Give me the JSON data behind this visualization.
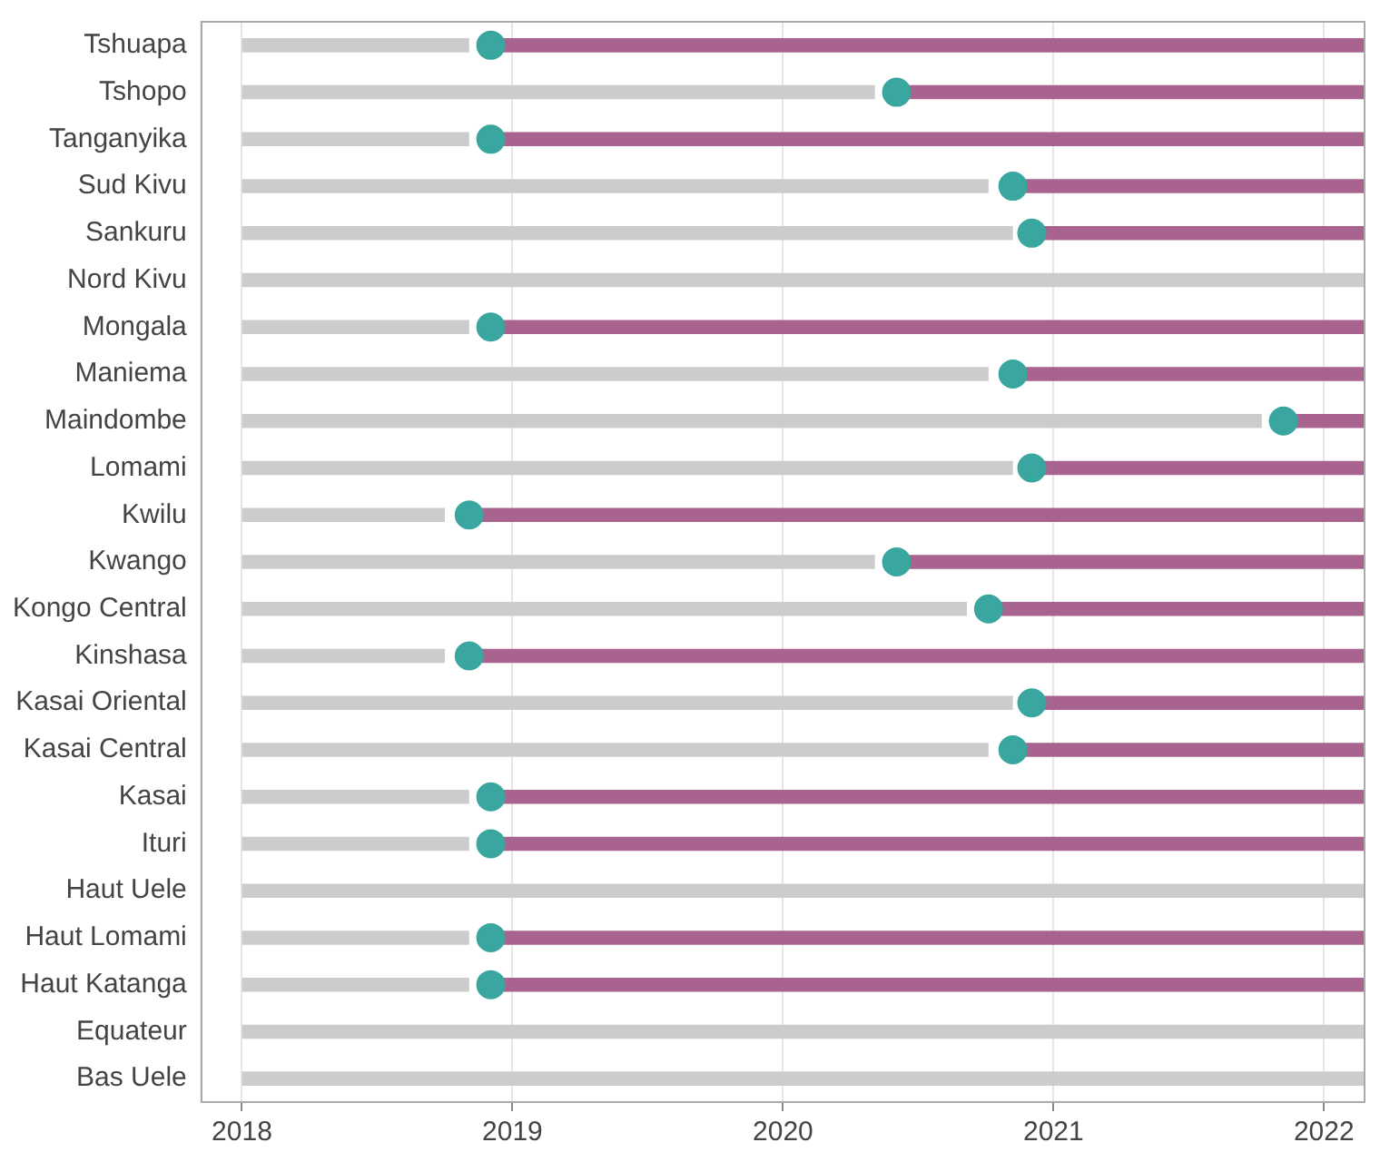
{
  "chart_data": {
    "type": "bar",
    "orientation": "horizontal",
    "categories": [
      "Tshuapa",
      "Tshopo",
      "Tanganyika",
      "Sud Kivu",
      "Sankuru",
      "Nord Kivu",
      "Mongala",
      "Maniema",
      "Maindombe",
      "Lomami",
      "Kwilu",
      "Kwango",
      "Kongo Central",
      "Kinshasa",
      "Kasai Oriental",
      "Kasai Central",
      "Kasai",
      "Ituri",
      "Haut Uele",
      "Haut Lomami",
      "Haut Katanga",
      "Equateur",
      "Bas Uele"
    ],
    "series": [
      {
        "color": "#cccccc",
        "base": [
          2018,
          2018,
          2018,
          2018,
          2018,
          2018,
          2018,
          2018,
          2018,
          2018,
          2018,
          2018,
          2018,
          2018,
          2018,
          2018,
          2018,
          2018,
          2018,
          2018,
          2018,
          2018,
          2018
        ],
        "values": [
          0.84,
          2.34,
          0.84,
          2.76,
          2.85,
          4.15,
          0.84,
          2.76,
          3.77,
          2.85,
          0.75,
          2.34,
          2.68,
          0.75,
          2.85,
          2.76,
          0.84,
          0.84,
          4.15,
          0.84,
          0.84,
          4.15,
          4.15
        ]
      },
      {
        "color": "#a8648f",
        "base": [
          2018.92,
          2020.42,
          2018.92,
          2020.85,
          2020.92,
          null,
          2018.92,
          2020.85,
          2021.85,
          2020.92,
          2018.84,
          2020.42,
          2020.76,
          2018.84,
          2020.92,
          2020.85,
          2018.92,
          2018.92,
          null,
          2018.92,
          2018.92,
          null,
          null
        ],
        "values": [
          3.23,
          1.73,
          3.23,
          1.3,
          1.23,
          null,
          3.23,
          1.3,
          0.3,
          1.23,
          3.31,
          1.73,
          1.39,
          3.31,
          1.23,
          1.3,
          3.23,
          3.23,
          null,
          3.23,
          3.23,
          null,
          null
        ]
      },
      {
        "type": "scatter",
        "color": "#3aa6a0",
        "values": [
          2018.92,
          2020.42,
          2018.92,
          2020.85,
          2020.92,
          null,
          2018.92,
          2020.85,
          2021.85,
          2020.92,
          2018.84,
          2020.42,
          2020.76,
          2018.84,
          2020.92,
          2020.85,
          2018.92,
          2018.92,
          null,
          2018.92,
          2018.92,
          null,
          null
        ]
      }
    ],
    "xlim": [
      2017.85,
      2022.15
    ],
    "xticks": [
      2018,
      2019,
      2020,
      2021,
      2022
    ],
    "grid": "x",
    "marker": "circle"
  }
}
